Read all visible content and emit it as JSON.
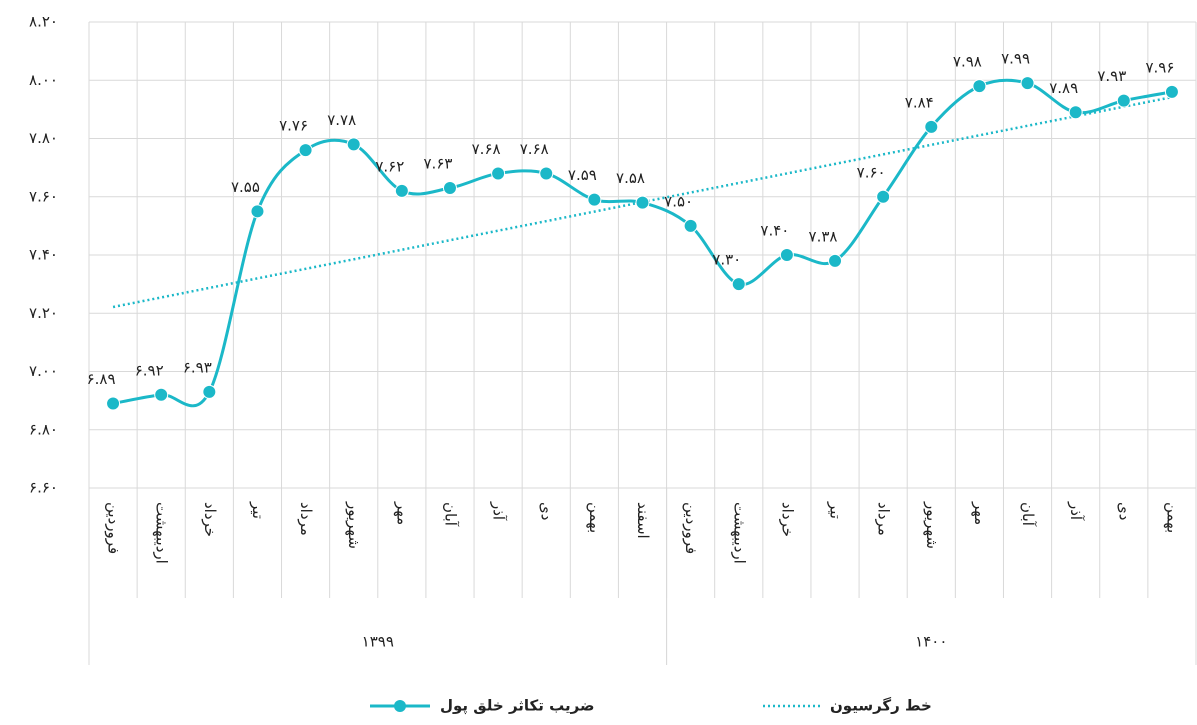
{
  "chart_data": {
    "type": "line",
    "categories": [
      "فروردین",
      "اردیبهشت",
      "خرداد",
      "تیر",
      "مرداد",
      "شهریور",
      "مهر",
      "آبان",
      "آذر",
      "دی",
      "بهمن",
      "اسفند",
      "فروردین",
      "اردیبهشت",
      "خرداد",
      "تیر",
      "مرداد",
      "شهریور",
      "مهر",
      "آبان",
      "آذر",
      "دی",
      "بهمن"
    ],
    "groups": [
      {
        "label": "۱۳۹۹",
        "count": 12
      },
      {
        "label": "۱۴۰۰",
        "count": 11
      }
    ],
    "series": [
      {
        "name": "ضریب تکاثر خلق پول",
        "color": "#1bb8c8",
        "values": [
          6.89,
          6.92,
          6.93,
          7.55,
          7.76,
          7.78,
          7.62,
          7.63,
          7.68,
          7.68,
          7.59,
          7.58,
          7.5,
          7.3,
          7.4,
          7.38,
          7.6,
          7.84,
          7.98,
          7.99,
          7.89,
          7.93,
          7.96
        ],
        "value_labels": [
          "۶.۸۹",
          "۶.۹۲",
          "۶.۹۳",
          "۷.۵۵",
          "۷.۷۶",
          "۷.۷۸",
          "۷.۶۲",
          "۷.۶۳",
          "۷.۶۸",
          "۷.۶۸",
          "۷.۵۹",
          "۷.۵۸",
          "۷.۵۰",
          "۷.۳۰",
          "۷.۴۰",
          "۷.۳۸",
          "۷.۶۰",
          "۷.۸۴",
          "۷.۹۸",
          "۷.۹۹",
          "۷.۸۹",
          "۷.۹۳",
          "۷.۹۶"
        ]
      }
    ],
    "trendline": {
      "name": "خط رگرسیون",
      "color": "#1bb8c8"
    },
    "ylim": [
      6.6,
      8.2
    ],
    "yticks": [
      {
        "value": 6.6,
        "label": "۶.۶۰"
      },
      {
        "value": 6.8,
        "label": "۶.۸۰"
      },
      {
        "value": 7.0,
        "label": "۷.۰۰"
      },
      {
        "value": 7.2,
        "label": "۷.۲۰"
      },
      {
        "value": 7.4,
        "label": "۷.۴۰"
      },
      {
        "value": 7.6,
        "label": "۷.۶۰"
      },
      {
        "value": 7.8,
        "label": "۷.۸۰"
      },
      {
        "value": 8.0,
        "label": "۸.۰۰"
      },
      {
        "value": 8.2,
        "label": "۸.۲۰"
      }
    ],
    "grid": true
  }
}
